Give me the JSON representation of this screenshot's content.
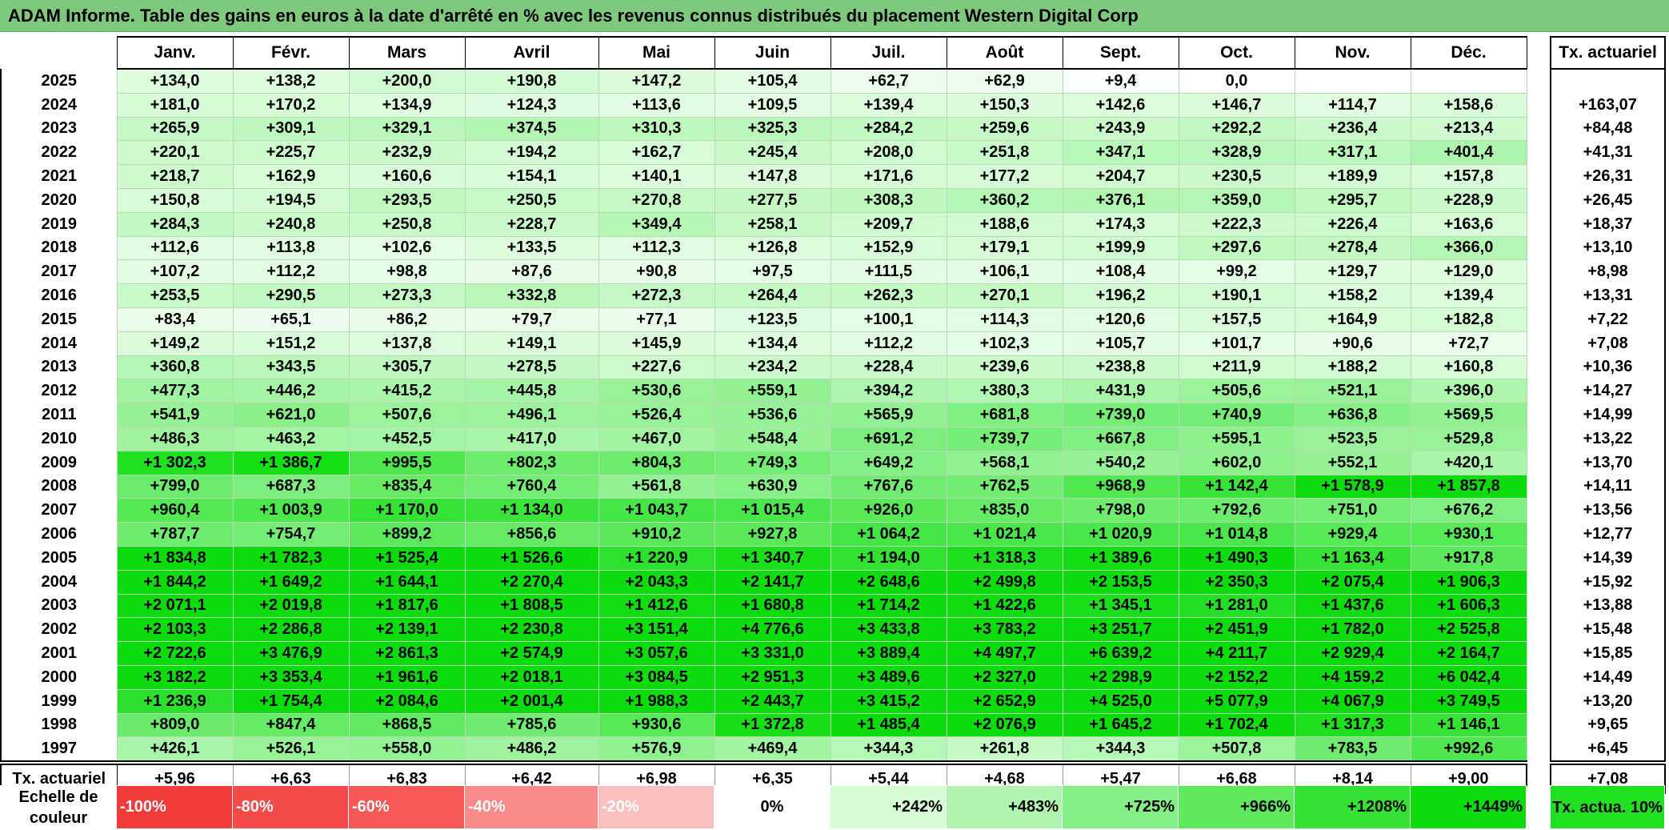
{
  "title": "ADAM Informe. Table des gains en euros à la date d'arrêté en % avec les revenus connus distribués du placement Western Digital Corp",
  "months": [
    "Janv.",
    "Févr.",
    "Mars",
    "Avril",
    "Mai",
    "Juin",
    "Juil.",
    "Août",
    "Sept.",
    "Oct.",
    "Nov.",
    "Déc."
  ],
  "tx_header": "Tx. actuariel",
  "rows": [
    {
      "year": "2025",
      "values": [
        "+134,0",
        "+138,2",
        "+200,0",
        "+190,8",
        "+147,2",
        "+105,4",
        "+62,7",
        "+62,9",
        "+9,4",
        "0,0",
        "",
        ""
      ],
      "tx": ""
    },
    {
      "year": "2024",
      "values": [
        "+181,0",
        "+170,2",
        "+134,9",
        "+124,3",
        "+113,6",
        "+109,5",
        "+139,4",
        "+150,3",
        "+142,6",
        "+146,7",
        "+114,7",
        "+158,6"
      ],
      "tx": "+163,07"
    },
    {
      "year": "2023",
      "values": [
        "+265,9",
        "+309,1",
        "+329,1",
        "+374,5",
        "+310,3",
        "+325,3",
        "+284,2",
        "+259,6",
        "+243,9",
        "+292,2",
        "+236,4",
        "+213,4"
      ],
      "tx": "+84,48"
    },
    {
      "year": "2022",
      "values": [
        "+220,1",
        "+225,7",
        "+232,9",
        "+194,2",
        "+162,7",
        "+245,4",
        "+208,0",
        "+251,8",
        "+347,1",
        "+328,9",
        "+317,1",
        "+401,4"
      ],
      "tx": "+41,31"
    },
    {
      "year": "2021",
      "values": [
        "+218,7",
        "+162,9",
        "+160,6",
        "+154,1",
        "+140,1",
        "+147,8",
        "+171,6",
        "+177,2",
        "+204,7",
        "+230,5",
        "+189,9",
        "+157,8"
      ],
      "tx": "+26,31"
    },
    {
      "year": "2020",
      "values": [
        "+150,8",
        "+194,5",
        "+293,5",
        "+250,5",
        "+270,8",
        "+277,5",
        "+308,3",
        "+360,2",
        "+376,1",
        "+359,0",
        "+295,7",
        "+228,9"
      ],
      "tx": "+26,45"
    },
    {
      "year": "2019",
      "values": [
        "+284,3",
        "+240,8",
        "+250,8",
        "+228,7",
        "+349,4",
        "+258,1",
        "+209,7",
        "+188,6",
        "+174,3",
        "+222,3",
        "+226,4",
        "+163,6"
      ],
      "tx": "+18,37"
    },
    {
      "year": "2018",
      "values": [
        "+112,6",
        "+113,8",
        "+102,6",
        "+133,5",
        "+112,3",
        "+126,8",
        "+152,9",
        "+179,1",
        "+199,9",
        "+297,6",
        "+278,4",
        "+366,0"
      ],
      "tx": "+13,10"
    },
    {
      "year": "2017",
      "values": [
        "+107,2",
        "+112,2",
        "+98,8",
        "+87,6",
        "+90,8",
        "+97,5",
        "+111,5",
        "+106,1",
        "+108,4",
        "+99,2",
        "+129,7",
        "+129,0"
      ],
      "tx": "+8,98"
    },
    {
      "year": "2016",
      "values": [
        "+253,5",
        "+290,5",
        "+273,3",
        "+332,8",
        "+272,3",
        "+264,4",
        "+262,3",
        "+270,1",
        "+196,2",
        "+190,1",
        "+158,2",
        "+139,4"
      ],
      "tx": "+13,31"
    },
    {
      "year": "2015",
      "values": [
        "+83,4",
        "+65,1",
        "+86,2",
        "+79,7",
        "+77,1",
        "+123,5",
        "+100,1",
        "+114,3",
        "+120,6",
        "+157,5",
        "+164,9",
        "+182,8"
      ],
      "tx": "+7,22"
    },
    {
      "year": "2014",
      "values": [
        "+149,2",
        "+151,2",
        "+137,8",
        "+149,1",
        "+145,9",
        "+134,4",
        "+112,2",
        "+102,3",
        "+105,7",
        "+101,7",
        "+90,6",
        "+72,7"
      ],
      "tx": "+7,08"
    },
    {
      "year": "2013",
      "values": [
        "+360,8",
        "+343,5",
        "+305,7",
        "+278,5",
        "+227,6",
        "+234,2",
        "+228,4",
        "+239,6",
        "+238,8",
        "+211,9",
        "+188,2",
        "+160,8"
      ],
      "tx": "+10,36"
    },
    {
      "year": "2012",
      "values": [
        "+477,3",
        "+446,2",
        "+415,2",
        "+445,8",
        "+530,6",
        "+559,1",
        "+394,2",
        "+380,3",
        "+431,9",
        "+505,6",
        "+521,1",
        "+396,0"
      ],
      "tx": "+14,27"
    },
    {
      "year": "2011",
      "values": [
        "+541,9",
        "+621,0",
        "+507,6",
        "+496,1",
        "+526,4",
        "+536,6",
        "+565,9",
        "+681,8",
        "+739,0",
        "+740,9",
        "+636,8",
        "+569,5"
      ],
      "tx": "+14,99"
    },
    {
      "year": "2010",
      "values": [
        "+486,3",
        "+463,2",
        "+452,5",
        "+417,0",
        "+467,0",
        "+548,4",
        "+691,2",
        "+739,7",
        "+667,8",
        "+595,1",
        "+523,5",
        "+529,8"
      ],
      "tx": "+13,22"
    },
    {
      "year": "2009",
      "values": [
        "+1 302,3",
        "+1 386,7",
        "+995,5",
        "+802,3",
        "+804,3",
        "+749,3",
        "+649,2",
        "+568,1",
        "+540,2",
        "+602,0",
        "+552,1",
        "+420,1"
      ],
      "tx": "+13,70"
    },
    {
      "year": "2008",
      "values": [
        "+799,0",
        "+687,3",
        "+835,4",
        "+760,4",
        "+561,8",
        "+630,9",
        "+767,6",
        "+762,5",
        "+968,9",
        "+1 142,4",
        "+1 578,9",
        "+1 857,8"
      ],
      "tx": "+14,11"
    },
    {
      "year": "2007",
      "values": [
        "+960,4",
        "+1 003,9",
        "+1 170,0",
        "+1 134,0",
        "+1 043,7",
        "+1 015,4",
        "+926,0",
        "+835,0",
        "+798,0",
        "+792,6",
        "+751,0",
        "+676,2"
      ],
      "tx": "+13,56"
    },
    {
      "year": "2006",
      "values": [
        "+787,7",
        "+754,7",
        "+899,2",
        "+856,6",
        "+910,2",
        "+927,8",
        "+1 064,2",
        "+1 021,4",
        "+1 020,9",
        "+1 014,8",
        "+929,4",
        "+930,1"
      ],
      "tx": "+12,77"
    },
    {
      "year": "2005",
      "values": [
        "+1 834,8",
        "+1 782,3",
        "+1 525,4",
        "+1 526,6",
        "+1 220,9",
        "+1 340,7",
        "+1 194,0",
        "+1 318,3",
        "+1 389,6",
        "+1 490,3",
        "+1 163,4",
        "+917,8"
      ],
      "tx": "+14,39"
    },
    {
      "year": "2004",
      "values": [
        "+1 844,2",
        "+1 649,2",
        "+1 644,1",
        "+2 270,4",
        "+2 043,3",
        "+2 141,7",
        "+2 648,6",
        "+2 499,8",
        "+2 153,5",
        "+2 350,3",
        "+2 075,4",
        "+1 906,3"
      ],
      "tx": "+15,92"
    },
    {
      "year": "2003",
      "values": [
        "+2 071,1",
        "+2 019,8",
        "+1 817,6",
        "+1 808,5",
        "+1 412,6",
        "+1 680,8",
        "+1 714,2",
        "+1 422,6",
        "+1 345,1",
        "+1 281,0",
        "+1 437,6",
        "+1 606,3"
      ],
      "tx": "+13,88"
    },
    {
      "year": "2002",
      "values": [
        "+2 103,3",
        "+2 286,8",
        "+2 139,1",
        "+2 230,8",
        "+3 151,4",
        "+4 776,6",
        "+3 433,8",
        "+3 783,2",
        "+3 251,7",
        "+2 451,9",
        "+1 782,0",
        "+2 525,8"
      ],
      "tx": "+15,48"
    },
    {
      "year": "2001",
      "values": [
        "+2 722,6",
        "+3 476,9",
        "+2 861,3",
        "+2 574,9",
        "+3 057,6",
        "+3 331,0",
        "+3 889,4",
        "+4 497,7",
        "+6 639,2",
        "+4 211,7",
        "+2 929,4",
        "+2 164,7"
      ],
      "tx": "+15,85"
    },
    {
      "year": "2000",
      "values": [
        "+3 182,2",
        "+3 353,4",
        "+1 961,6",
        "+2 018,1",
        "+3 084,5",
        "+2 951,3",
        "+3 489,6",
        "+2 327,0",
        "+2 298,9",
        "+2 152,2",
        "+4 159,2",
        "+6 042,4"
      ],
      "tx": "+14,49"
    },
    {
      "year": "1999",
      "values": [
        "+1 236,9",
        "+1 754,4",
        "+2 084,6",
        "+2 001,4",
        "+1 988,3",
        "+2 443,7",
        "+3 415,2",
        "+2 652,9",
        "+4 525,0",
        "+5 077,9",
        "+4 067,9",
        "+3 749,5"
      ],
      "tx": "+13,20"
    },
    {
      "year": "1998",
      "values": [
        "+809,0",
        "+847,4",
        "+868,5",
        "+785,6",
        "+930,6",
        "+1 372,8",
        "+1 485,4",
        "+2 076,9",
        "+1 645,2",
        "+1 702,4",
        "+1 317,3",
        "+1 146,1"
      ],
      "tx": "+9,65"
    },
    {
      "year": "1997",
      "values": [
        "+426,1",
        "+526,1",
        "+558,0",
        "+486,2",
        "+576,9",
        "+469,4",
        "+344,3",
        "+261,8",
        "+344,3",
        "+507,8",
        "+783,5",
        "+992,6"
      ],
      "tx": "+6,45"
    }
  ],
  "summary": {
    "label": "Tx. actuariel",
    "values": [
      "+5,96",
      "+6,63",
      "+6,83",
      "+6,42",
      "+6,98",
      "+6,35",
      "+5,44",
      "+4,68",
      "+5,47",
      "+6,68",
      "+8,14",
      "+9,00"
    ],
    "tx": "+7,08"
  },
  "scale": {
    "label": "Echelle de couleur",
    "steps": [
      {
        "label": "-100%",
        "color": "#f23c3c",
        "kind": "neg"
      },
      {
        "label": "-80%",
        "color": "#f44a4a",
        "kind": "neg"
      },
      {
        "label": "-60%",
        "color": "#f65858",
        "kind": "neg"
      },
      {
        "label": "-40%",
        "color": "#f88a8a",
        "kind": "neg"
      },
      {
        "label": "-20%",
        "color": "#fcc0c0",
        "kind": "neg"
      },
      {
        "label": "0%",
        "color": "#ffffff",
        "kind": "zero"
      },
      {
        "label": "+242%",
        "color": "#d6fbd6",
        "kind": "pos"
      },
      {
        "label": "+483%",
        "color": "#b0f4b0",
        "kind": "pos"
      },
      {
        "label": "+725%",
        "color": "#86ee86",
        "kind": "pos"
      },
      {
        "label": "+966%",
        "color": "#5de85d",
        "kind": "pos"
      },
      {
        "label": "+1208%",
        "color": "#34e234",
        "kind": "pos"
      },
      {
        "label": "+1449%",
        "color": "#0cdc0c",
        "kind": "pos"
      }
    ],
    "tx_legend": "Tx. actua. 10%",
    "tx_legend_color": "#21e021"
  }
}
